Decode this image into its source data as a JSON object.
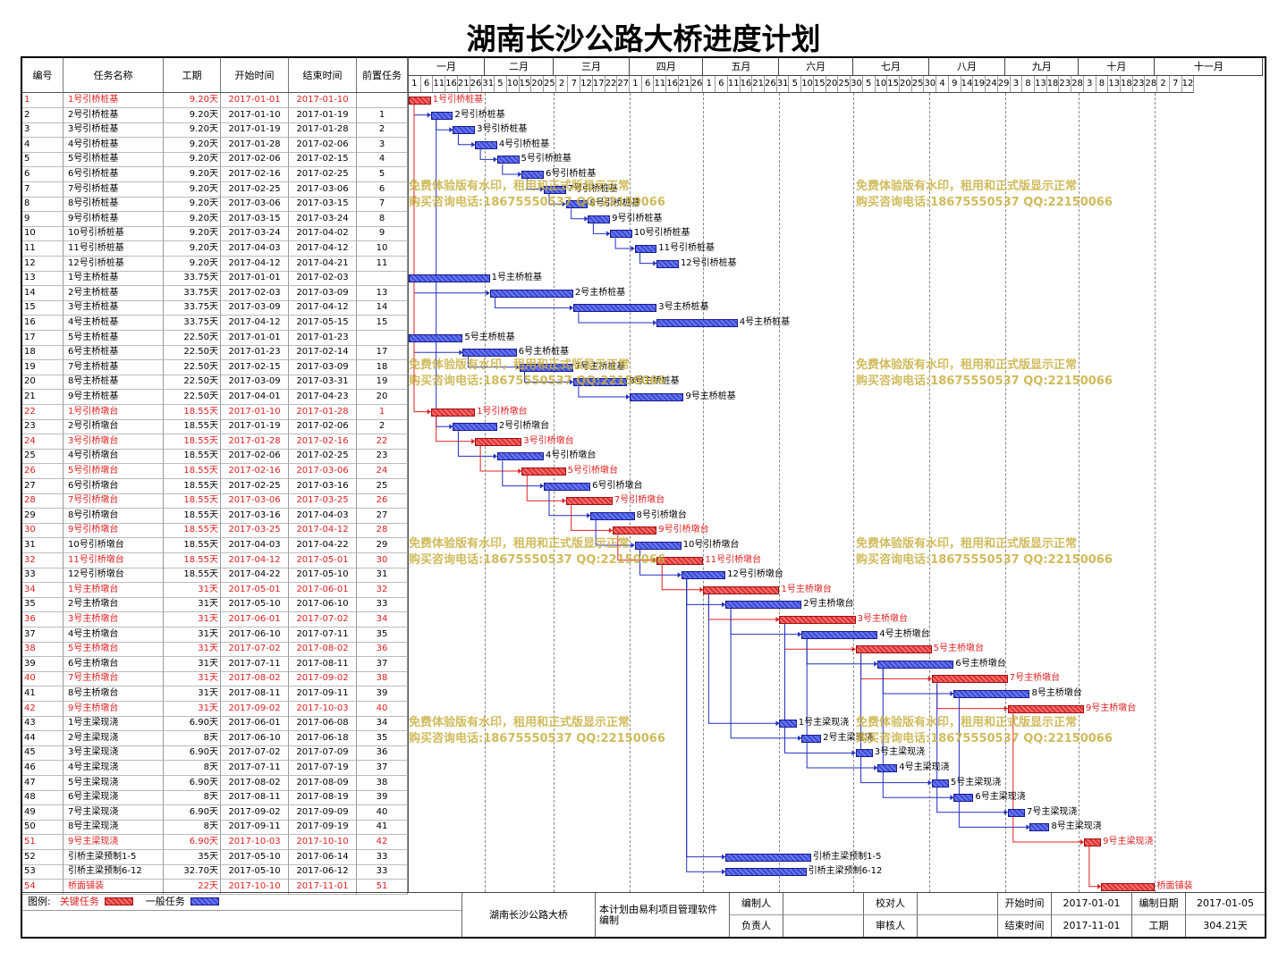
{
  "title": "湖南长沙公路大桥进度计划",
  "headers": {
    "id": "编号",
    "name": "任务名称",
    "duration": "工期",
    "start": "开始时间",
    "end": "结束时间",
    "pred": "前置任务"
  },
  "months": [
    "一月",
    "二月",
    "三月",
    "四月",
    "五月",
    "六月",
    "七月",
    "八月",
    "九月",
    "十月",
    "十一月"
  ],
  "day_ticks": [
    "1",
    "6",
    "11",
    "16",
    "21",
    "26",
    "31",
    "5",
    "10",
    "15",
    "20",
    "25",
    "2",
    "7",
    "12",
    "17",
    "22",
    "27",
    "1",
    "6",
    "11",
    "16",
    "21",
    "26",
    "1",
    "6",
    "11",
    "16",
    "21",
    "26",
    "31",
    "5",
    "10",
    "15",
    "20",
    "25",
    "30",
    "5",
    "10",
    "15",
    "20",
    "25",
    "30",
    "4",
    "9",
    "14",
    "19",
    "24",
    "29",
    "3",
    "8",
    "13",
    "18",
    "23",
    "28",
    "3",
    "8",
    "13",
    "18",
    "23",
    "28",
    "2",
    "7",
    "12"
  ],
  "tasks": [
    {
      "id": "1",
      "name": "1号引桥桩基",
      "dur": "9.20天",
      "start": "2017-01-01",
      "end": "2017-01-10",
      "pred": "",
      "crit": true
    },
    {
      "id": "2",
      "name": "2号引桥桩基",
      "dur": "9.20天",
      "start": "2017-01-10",
      "end": "2017-01-19",
      "pred": "1",
      "crit": false
    },
    {
      "id": "3",
      "name": "3号引桥桩基",
      "dur": "9.20天",
      "start": "2017-01-19",
      "end": "2017-01-28",
      "pred": "2",
      "crit": false
    },
    {
      "id": "4",
      "name": "4号引桥桩基",
      "dur": "9.20天",
      "start": "2017-01-28",
      "end": "2017-02-06",
      "pred": "3",
      "crit": false
    },
    {
      "id": "5",
      "name": "5号引桥桩基",
      "dur": "9.20天",
      "start": "2017-02-06",
      "end": "2017-02-15",
      "pred": "4",
      "crit": false
    },
    {
      "id": "6",
      "name": "6号引桥桩基",
      "dur": "9.20天",
      "start": "2017-02-16",
      "end": "2017-02-25",
      "pred": "5",
      "crit": false
    },
    {
      "id": "7",
      "name": "7号引桥桩基",
      "dur": "9.20天",
      "start": "2017-02-25",
      "end": "2017-03-06",
      "pred": "6",
      "crit": false
    },
    {
      "id": "8",
      "name": "8号引桥桩基",
      "dur": "9.20天",
      "start": "2017-03-06",
      "end": "2017-03-15",
      "pred": "7",
      "crit": false
    },
    {
      "id": "9",
      "name": "9号引桥桩基",
      "dur": "9.20天",
      "start": "2017-03-15",
      "end": "2017-03-24",
      "pred": "8",
      "crit": false
    },
    {
      "id": "10",
      "name": "10号引桥桩基",
      "dur": "9.20天",
      "start": "2017-03-24",
      "end": "2017-04-02",
      "pred": "9",
      "crit": false
    },
    {
      "id": "11",
      "name": "11号引桥桩基",
      "dur": "9.20天",
      "start": "2017-04-03",
      "end": "2017-04-12",
      "pred": "10",
      "crit": false
    },
    {
      "id": "12",
      "name": "12号引桥桩基",
      "dur": "9.20天",
      "start": "2017-04-12",
      "end": "2017-04-21",
      "pred": "11",
      "crit": false
    },
    {
      "id": "13",
      "name": "1号主桥桩基",
      "dur": "33.75天",
      "start": "2017-01-01",
      "end": "2017-02-03",
      "pred": "",
      "crit": false
    },
    {
      "id": "14",
      "name": "2号主桥桩基",
      "dur": "33.75天",
      "start": "2017-02-03",
      "end": "2017-03-09",
      "pred": "13",
      "crit": false
    },
    {
      "id": "15",
      "name": "3号主桥桩基",
      "dur": "33.75天",
      "start": "2017-03-09",
      "end": "2017-04-12",
      "pred": "14",
      "crit": false
    },
    {
      "id": "16",
      "name": "4号主桥桩基",
      "dur": "33.75天",
      "start": "2017-04-12",
      "end": "2017-05-15",
      "pred": "15",
      "crit": false
    },
    {
      "id": "17",
      "name": "5号主桥桩基",
      "dur": "22.50天",
      "start": "2017-01-01",
      "end": "2017-01-23",
      "pred": "",
      "crit": false
    },
    {
      "id": "18",
      "name": "6号主桥桩基",
      "dur": "22.50天",
      "start": "2017-01-23",
      "end": "2017-02-14",
      "pred": "17",
      "crit": false
    },
    {
      "id": "19",
      "name": "7号主桥桩基",
      "dur": "22.50天",
      "start": "2017-02-15",
      "end": "2017-03-09",
      "pred": "18",
      "crit": false
    },
    {
      "id": "20",
      "name": "8号主桥桩基",
      "dur": "22.50天",
      "start": "2017-03-09",
      "end": "2017-03-31",
      "pred": "19",
      "crit": false
    },
    {
      "id": "21",
      "name": "9号主桥桩基",
      "dur": "22.50天",
      "start": "2017-04-01",
      "end": "2017-04-23",
      "pred": "20",
      "crit": false
    },
    {
      "id": "22",
      "name": "1号引桥墩台",
      "dur": "18.55天",
      "start": "2017-01-10",
      "end": "2017-01-28",
      "pred": "1",
      "crit": true
    },
    {
      "id": "23",
      "name": "2号引桥墩台",
      "dur": "18.55天",
      "start": "2017-01-19",
      "end": "2017-02-06",
      "pred": "2",
      "crit": false
    },
    {
      "id": "24",
      "name": "3号引桥墩台",
      "dur": "18.55天",
      "start": "2017-01-28",
      "end": "2017-02-16",
      "pred": "22",
      "crit": true
    },
    {
      "id": "25",
      "name": "4号引桥墩台",
      "dur": "18.55天",
      "start": "2017-02-06",
      "end": "2017-02-25",
      "pred": "23",
      "crit": false
    },
    {
      "id": "26",
      "name": "5号引桥墩台",
      "dur": "18.55天",
      "start": "2017-02-16",
      "end": "2017-03-06",
      "pred": "24",
      "crit": true
    },
    {
      "id": "27",
      "name": "6号引桥墩台",
      "dur": "18.55天",
      "start": "2017-02-25",
      "end": "2017-03-16",
      "pred": "25",
      "crit": false
    },
    {
      "id": "28",
      "name": "7号引桥墩台",
      "dur": "18.55天",
      "start": "2017-03-06",
      "end": "2017-03-25",
      "pred": "26",
      "crit": true
    },
    {
      "id": "29",
      "name": "8号引桥墩台",
      "dur": "18.55天",
      "start": "2017-03-16",
      "end": "2017-04-03",
      "pred": "27",
      "crit": false
    },
    {
      "id": "30",
      "name": "9号引桥墩台",
      "dur": "18.55天",
      "start": "2017-03-25",
      "end": "2017-04-12",
      "pred": "28",
      "crit": true
    },
    {
      "id": "31",
      "name": "10号引桥墩台",
      "dur": "18.55天",
      "start": "2017-04-03",
      "end": "2017-04-22",
      "pred": "29",
      "crit": false
    },
    {
      "id": "32",
      "name": "11号引桥墩台",
      "dur": "18.55天",
      "start": "2017-04-12",
      "end": "2017-05-01",
      "pred": "30",
      "crit": true
    },
    {
      "id": "33",
      "name": "12号引桥墩台",
      "dur": "18.55天",
      "start": "2017-04-22",
      "end": "2017-05-10",
      "pred": "31",
      "crit": false
    },
    {
      "id": "34",
      "name": "1号主桥墩台",
      "dur": "31天",
      "start": "2017-05-01",
      "end": "2017-06-01",
      "pred": "32",
      "crit": true
    },
    {
      "id": "35",
      "name": "2号主桥墩台",
      "dur": "31天",
      "start": "2017-05-10",
      "end": "2017-06-10",
      "pred": "33",
      "crit": false
    },
    {
      "id": "36",
      "name": "3号主桥墩台",
      "dur": "31天",
      "start": "2017-06-01",
      "end": "2017-07-02",
      "pred": "34",
      "crit": true
    },
    {
      "id": "37",
      "name": "4号主桥墩台",
      "dur": "31天",
      "start": "2017-06-10",
      "end": "2017-07-11",
      "pred": "35",
      "crit": false
    },
    {
      "id": "38",
      "name": "5号主桥墩台",
      "dur": "31天",
      "start": "2017-07-02",
      "end": "2017-08-02",
      "pred": "36",
      "crit": true
    },
    {
      "id": "39",
      "name": "6号主桥墩台",
      "dur": "31天",
      "start": "2017-07-11",
      "end": "2017-08-11",
      "pred": "37",
      "crit": false
    },
    {
      "id": "40",
      "name": "7号主桥墩台",
      "dur": "31天",
      "start": "2017-08-02",
      "end": "2017-09-02",
      "pred": "38",
      "crit": true
    },
    {
      "id": "41",
      "name": "8号主桥墩台",
      "dur": "31天",
      "start": "2017-08-11",
      "end": "2017-09-11",
      "pred": "39",
      "crit": false
    },
    {
      "id": "42",
      "name": "9号主桥墩台",
      "dur": "31天",
      "start": "2017-09-02",
      "end": "2017-10-03",
      "pred": "40",
      "crit": true
    },
    {
      "id": "43",
      "name": "1号主梁现浇",
      "dur": "6.90天",
      "start": "2017-06-01",
      "end": "2017-06-08",
      "pred": "34",
      "crit": false
    },
    {
      "id": "44",
      "name": "2号主梁现浇",
      "dur": "8天",
      "start": "2017-06-10",
      "end": "2017-06-18",
      "pred": "35",
      "crit": false
    },
    {
      "id": "45",
      "name": "3号主梁现浇",
      "dur": "6.90天",
      "start": "2017-07-02",
      "end": "2017-07-09",
      "pred": "36",
      "crit": false
    },
    {
      "id": "46",
      "name": "4号主梁现浇",
      "dur": "8天",
      "start": "2017-07-11",
      "end": "2017-07-19",
      "pred": "37",
      "crit": false
    },
    {
      "id": "47",
      "name": "5号主梁现浇",
      "dur": "6.90天",
      "start": "2017-08-02",
      "end": "2017-08-09",
      "pred": "38",
      "crit": false
    },
    {
      "id": "48",
      "name": "6号主梁现浇",
      "dur": "8天",
      "start": "2017-08-11",
      "end": "2017-08-19",
      "pred": "39",
      "crit": false
    },
    {
      "id": "49",
      "name": "7号主梁现浇",
      "dur": "6.90天",
      "start": "2017-09-02",
      "end": "2017-09-09",
      "pred": "40",
      "crit": false
    },
    {
      "id": "50",
      "name": "8号主梁现浇",
      "dur": "8天",
      "start": "2017-09-11",
      "end": "2017-09-19",
      "pred": "41",
      "crit": false
    },
    {
      "id": "51",
      "name": "9号主梁现浇",
      "dur": "6.90天",
      "start": "2017-10-03",
      "end": "2017-10-10",
      "pred": "42",
      "crit": true
    },
    {
      "id": "52",
      "name": "引桥主梁预制1-5",
      "dur": "35天",
      "start": "2017-05-10",
      "end": "2017-06-14",
      "pred": "33",
      "crit": false
    },
    {
      "id": "53",
      "name": "引桥主梁预制6-12",
      "dur": "32.70天",
      "start": "2017-05-10",
      "end": "2017-06-12",
      "pred": "33",
      "crit": false
    },
    {
      "id": "54",
      "name": "桥面铺装",
      "dur": "22天",
      "start": "2017-10-10",
      "end": "2017-11-01",
      "pred": "51",
      "crit": true
    }
  ],
  "watermark": {
    "line1": "免费体验版有水印，租用和正式版显示正常",
    "line2": "购买咨询电话:18675550537 QQ:22150066"
  },
  "footer": {
    "legend_label": "图例:",
    "legend_crit": "关键任务",
    "legend_normal": "一般任务",
    "project_name": "湖南长沙公路大桥",
    "software_note": "本计划由易利项目管理软件编制",
    "compiler_label": "编制人",
    "checker_label": "校对人",
    "owner_label": "负责人",
    "reviewer_label": "审核人",
    "start_label": "开始时间",
    "start_value": "2017-01-01",
    "end_label": "结束时间",
    "end_value": "2017-11-01",
    "date_label": "编制日期",
    "date_value": "2017-01-05",
    "duration_label": "工期",
    "duration_value": "304.21天"
  },
  "colors": {
    "critical": "#e02020",
    "normal": "#3a4ad8",
    "watermark": "#c8b040"
  }
}
